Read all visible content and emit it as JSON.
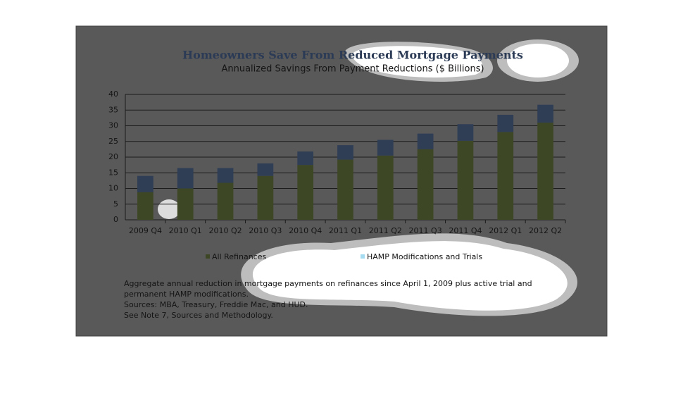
{
  "chart_data": {
    "type": "stacked_bar",
    "title": "Homeowners Save From Reduced Mortgage Payments",
    "subtitle": "Annualized Savings From Payment Reductions ($ Billions)",
    "categories": [
      "2009 Q4",
      "2010 Q1",
      "2010 Q2",
      "2010 Q3",
      "2010 Q4",
      "2011 Q1",
      "2011 Q2",
      "2011 Q3",
      "2011 Q4",
      "2012 Q1",
      "2012 Q2"
    ],
    "series": [
      {
        "name": "All Refinances",
        "color": "#3e4725",
        "values": [
          8.8,
          10,
          11.8,
          14,
          17.5,
          19.2,
          20.5,
          22.5,
          25.2,
          28,
          31
        ]
      },
      {
        "name": "HAMP Modifications and Trials",
        "color": "#2f3d55",
        "values": [
          5.2,
          6.5,
          4.7,
          4,
          4.3,
          4.6,
          5,
          5,
          5.3,
          5.5,
          5.7
        ]
      }
    ],
    "ylim": [
      0,
      40
    ],
    "yticks": [
      0,
      5,
      10,
      15,
      20,
      25,
      30,
      35,
      40
    ],
    "grid": true,
    "notes": [
      "Aggregate annual reduction in mortgage payments on refinances since April 1, 2009 plus active trial and",
      "permanent HAMP modifications.",
      "Sources:  MBA, Treasury, Freddie Mac, and HUD.",
      "See Note 7, Sources and Methodology."
    ]
  }
}
